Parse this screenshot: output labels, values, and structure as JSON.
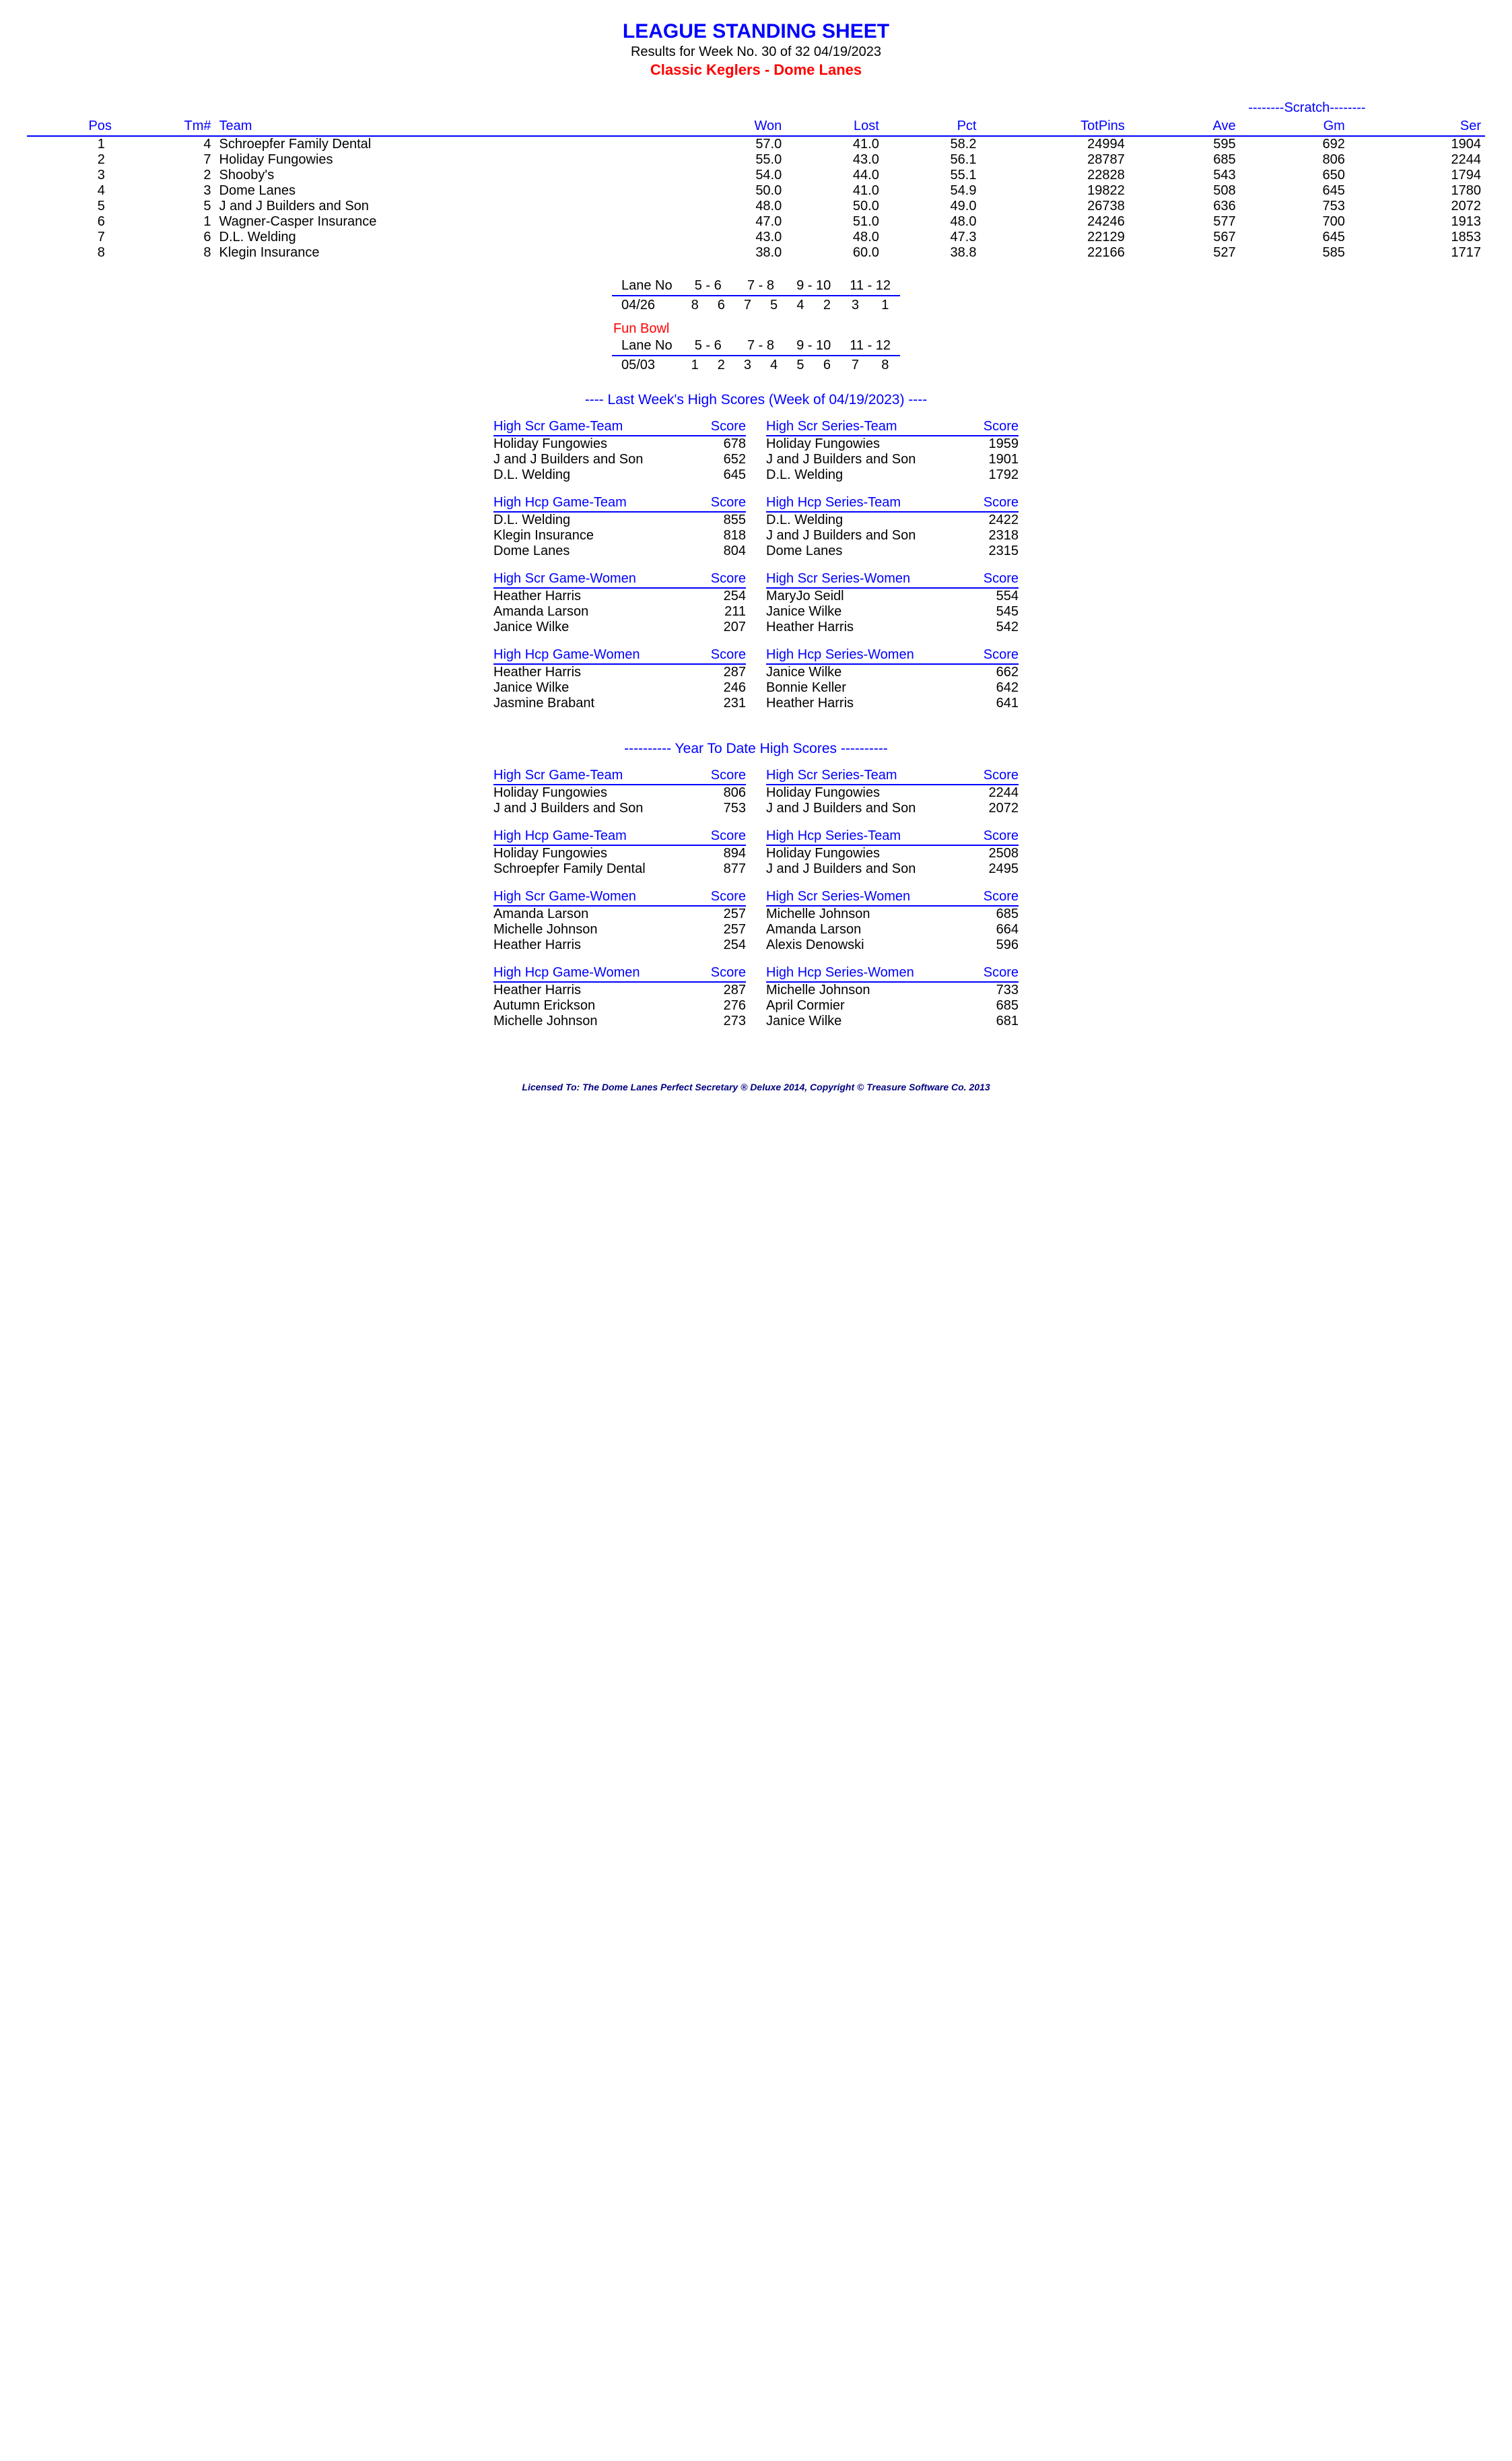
{
  "header": {
    "title": "LEAGUE STANDING SHEET",
    "subtitle": "Results for Week No. 30 of 32    04/19/2023",
    "league": "Classic Keglers - Dome Lanes"
  },
  "standings": {
    "scratch_label": "--------Scratch--------",
    "cols": [
      "Pos",
      "Tm#",
      "Team",
      "Won",
      "Lost",
      "Pct",
      "TotPins",
      "Ave",
      "Gm",
      "Ser"
    ],
    "rows": [
      [
        "1",
        "4",
        "Schroepfer Family Dental",
        "57.0",
        "41.0",
        "58.2",
        "24994",
        "595",
        "692",
        "1904"
      ],
      [
        "2",
        "7",
        "Holiday Fungowies",
        "55.0",
        "43.0",
        "56.1",
        "28787",
        "685",
        "806",
        "2244"
      ],
      [
        "3",
        "2",
        "Shooby's",
        "54.0",
        "44.0",
        "55.1",
        "22828",
        "543",
        "650",
        "1794"
      ],
      [
        "4",
        "3",
        "Dome Lanes",
        "50.0",
        "41.0",
        "54.9",
        "19822",
        "508",
        "645",
        "1780"
      ],
      [
        "5",
        "5",
        "J and J Builders and Son",
        "48.0",
        "50.0",
        "49.0",
        "26738",
        "636",
        "753",
        "2072"
      ],
      [
        "6",
        "1",
        "Wagner-Casper Insurance",
        "47.0",
        "51.0",
        "48.0",
        "24246",
        "577",
        "700",
        "1913"
      ],
      [
        "7",
        "6",
        "D.L. Welding",
        "43.0",
        "48.0",
        "47.3",
        "22129",
        "567",
        "645",
        "1853"
      ],
      [
        "8",
        "8",
        "Klegin Insurance",
        "38.0",
        "60.0",
        "38.8",
        "22166",
        "527",
        "585",
        "1717"
      ]
    ]
  },
  "lanes": [
    {
      "label": "",
      "lane_no_label": "Lane No",
      "pairs": [
        "5 -  6",
        "7 -  8",
        "9 - 10",
        "11 - 12"
      ],
      "date": "04/26",
      "assign": [
        [
          "8",
          "6"
        ],
        [
          "7",
          "5"
        ],
        [
          "4",
          "2"
        ],
        [
          "3",
          "1"
        ]
      ]
    },
    {
      "label": "Fun Bowl",
      "lane_no_label": "Lane No",
      "pairs": [
        "5 -  6",
        "7 -  8",
        "9 - 10",
        "11 - 12"
      ],
      "date": "05/03",
      "assign": [
        [
          "1",
          "2"
        ],
        [
          "3",
          "4"
        ],
        [
          "5",
          "6"
        ],
        [
          "7",
          "8"
        ]
      ]
    }
  ],
  "last_week": {
    "title": "----  Last Week's High Scores   (Week of 04/19/2023)  ----",
    "blocks": [
      {
        "title": "High Scr Game-Team",
        "score": "Score",
        "rows": [
          [
            "Holiday Fungowies",
            "678"
          ],
          [
            "J and J Builders and Son",
            "652"
          ],
          [
            "D.L. Welding",
            "645"
          ]
        ]
      },
      {
        "title": "High Scr Series-Team",
        "score": "Score",
        "rows": [
          [
            "Holiday Fungowies",
            "1959"
          ],
          [
            "J and J Builders and Son",
            "1901"
          ],
          [
            "D.L. Welding",
            "1792"
          ]
        ]
      },
      {
        "title": "High Hcp Game-Team",
        "score": "Score",
        "rows": [
          [
            "D.L. Welding",
            "855"
          ],
          [
            "Klegin Insurance",
            "818"
          ],
          [
            "Dome Lanes",
            "804"
          ]
        ]
      },
      {
        "title": "High Hcp Series-Team",
        "score": "Score",
        "rows": [
          [
            "D.L. Welding",
            "2422"
          ],
          [
            "J and J Builders and Son",
            "2318"
          ],
          [
            "Dome Lanes",
            "2315"
          ]
        ]
      },
      {
        "title": "High Scr Game-Women",
        "score": "Score",
        "rows": [
          [
            "Heather Harris",
            "254"
          ],
          [
            "Amanda Larson",
            "211"
          ],
          [
            "Janice Wilke",
            "207"
          ]
        ]
      },
      {
        "title": "High Scr Series-Women",
        "score": "Score",
        "rows": [
          [
            "MaryJo Seidl",
            "554"
          ],
          [
            "Janice Wilke",
            "545"
          ],
          [
            "Heather Harris",
            "542"
          ]
        ]
      },
      {
        "title": "High Hcp Game-Women",
        "score": "Score",
        "rows": [
          [
            "Heather Harris",
            "287"
          ],
          [
            "Janice Wilke",
            "246"
          ],
          [
            "Jasmine Brabant",
            "231"
          ]
        ]
      },
      {
        "title": "High Hcp Series-Women",
        "score": "Score",
        "rows": [
          [
            "Janice Wilke",
            "662"
          ],
          [
            "Bonnie Keller",
            "642"
          ],
          [
            "Heather Harris",
            "641"
          ]
        ]
      }
    ]
  },
  "ytd": {
    "title": "---------- Year To Date High Scores ----------",
    "blocks": [
      {
        "title": "High Scr Game-Team",
        "score": "Score",
        "rows": [
          [
            "Holiday Fungowies",
            "806"
          ],
          [
            "J and J Builders and Son",
            "753"
          ]
        ]
      },
      {
        "title": "High Scr Series-Team",
        "score": "Score",
        "rows": [
          [
            "Holiday Fungowies",
            "2244"
          ],
          [
            "J and J Builders and Son",
            "2072"
          ]
        ]
      },
      {
        "title": "High Hcp Game-Team",
        "score": "Score",
        "rows": [
          [
            "Holiday Fungowies",
            "894"
          ],
          [
            "Schroepfer Family Dental",
            "877"
          ]
        ]
      },
      {
        "title": "High Hcp Series-Team",
        "score": "Score",
        "rows": [
          [
            "Holiday Fungowies",
            "2508"
          ],
          [
            "J and J Builders and Son",
            "2495"
          ]
        ]
      },
      {
        "title": "High Scr Game-Women",
        "score": "Score",
        "rows": [
          [
            "Amanda Larson",
            "257"
          ],
          [
            "Michelle Johnson",
            "257"
          ],
          [
            "Heather Harris",
            "254"
          ]
        ]
      },
      {
        "title": "High Scr Series-Women",
        "score": "Score",
        "rows": [
          [
            "Michelle Johnson",
            "685"
          ],
          [
            "Amanda Larson",
            "664"
          ],
          [
            "Alexis Denowski",
            "596"
          ]
        ]
      },
      {
        "title": "High Hcp Game-Women",
        "score": "Score",
        "rows": [
          [
            "Heather Harris",
            "287"
          ],
          [
            "Autumn Erickson",
            "276"
          ],
          [
            "Michelle Johnson",
            "273"
          ]
        ]
      },
      {
        "title": "High Hcp Series-Women",
        "score": "Score",
        "rows": [
          [
            "Michelle Johnson",
            "733"
          ],
          [
            "April Cormier",
            "685"
          ],
          [
            "Janice Wilke",
            "681"
          ]
        ]
      }
    ]
  },
  "footer": "Licensed To: The Dome Lanes    Perfect Secretary ® Deluxe  2014, Copyright © Treasure Software Co. 2013"
}
